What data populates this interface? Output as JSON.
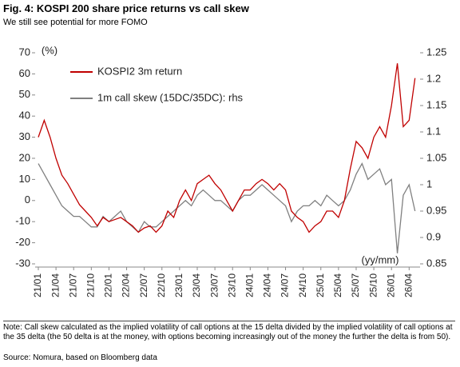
{
  "chart_data": {
    "type": "line",
    "title": "Fig. 4: KOSPI 200 share price returns vs call skew",
    "subtitle": "We still see potential for more FOMO",
    "y_label": "(%)",
    "x_label": "(yy/mm)",
    "categories": [
      "21/01",
      null,
      null,
      "21/04",
      null,
      null,
      "21/07",
      null,
      null,
      "21/10",
      null,
      null,
      "22/01",
      null,
      null,
      "22/04",
      null,
      null,
      "22/07",
      null,
      null,
      "22/10",
      null,
      null,
      "23/01",
      null,
      null,
      "23/04",
      null,
      null,
      "23/07",
      null,
      null,
      "23/10",
      null,
      null,
      "24/01",
      null,
      null,
      "24/04",
      null,
      null,
      "24/07",
      null,
      null,
      "24/10",
      null,
      null,
      "25/01",
      null,
      null,
      "25/04",
      null,
      null,
      "25/07",
      null,
      null,
      "25/10",
      null,
      null,
      "26/01",
      null,
      null,
      "26/04",
      null
    ],
    "series": [
      {
        "name": "KOSPI2 3m return",
        "color": "#c00000",
        "values": [
          30,
          38,
          30,
          20,
          12,
          8,
          3,
          -2,
          -5,
          -8,
          -12,
          -8,
          -10,
          -9,
          -8,
          -10,
          -12,
          -15,
          -13,
          -12,
          -15,
          -12,
          -5,
          -8,
          0,
          5,
          0,
          8,
          10,
          12,
          8,
          5,
          0,
          -5,
          0,
          5,
          5,
          8,
          10,
          8,
          5,
          8,
          5,
          -5,
          -8,
          -10,
          -15,
          -12,
          -10,
          -5,
          -5,
          -8,
          0,
          15,
          28,
          25,
          20,
          30,
          35,
          30,
          45,
          65,
          35,
          38,
          58
        ]
      },
      {
        "name": "1m call skew (15DC/35DC): rhs",
        "color": "#808080",
        "axis": "y2",
        "values": [
          1.04,
          1.02,
          1.0,
          0.98,
          0.96,
          0.95,
          0.94,
          0.94,
          0.93,
          0.92,
          0.92,
          0.94,
          0.93,
          0.94,
          0.95,
          0.93,
          0.92,
          0.91,
          0.93,
          0.92,
          0.92,
          0.93,
          0.94,
          0.95,
          0.96,
          0.97,
          0.96,
          0.98,
          0.99,
          0.98,
          0.97,
          0.97,
          0.96,
          0.95,
          0.97,
          0.98,
          0.98,
          0.99,
          1.0,
          0.99,
          0.98,
          0.97,
          0.96,
          0.93,
          0.95,
          0.96,
          0.96,
          0.97,
          0.96,
          0.98,
          0.97,
          0.96,
          0.97,
          0.99,
          1.02,
          1.04,
          1.01,
          1.02,
          1.03,
          1.0,
          1.01,
          0.87,
          0.98,
          1.0,
          0.95
        ]
      }
    ],
    "ylim": [
      -30,
      70
    ],
    "yticks": [
      -30,
      -20,
      -10,
      0,
      10,
      20,
      30,
      40,
      50,
      60,
      70
    ],
    "y2lim": [
      0.85,
      1.25
    ],
    "y2ticks": [
      0.85,
      0.9,
      0.95,
      1,
      1.05,
      1.1,
      1.15,
      1.2,
      1.25
    ],
    "note": "Note: Call skew calculated as the implied volatility of call options at the 15 delta divided by the implied volatility of call options at the 35 delta (the 50 delta is at the money, with options becoming increasingly out of the money the further the delta is from 50).",
    "source": "Source: Nomura, based on Bloomberg data"
  }
}
